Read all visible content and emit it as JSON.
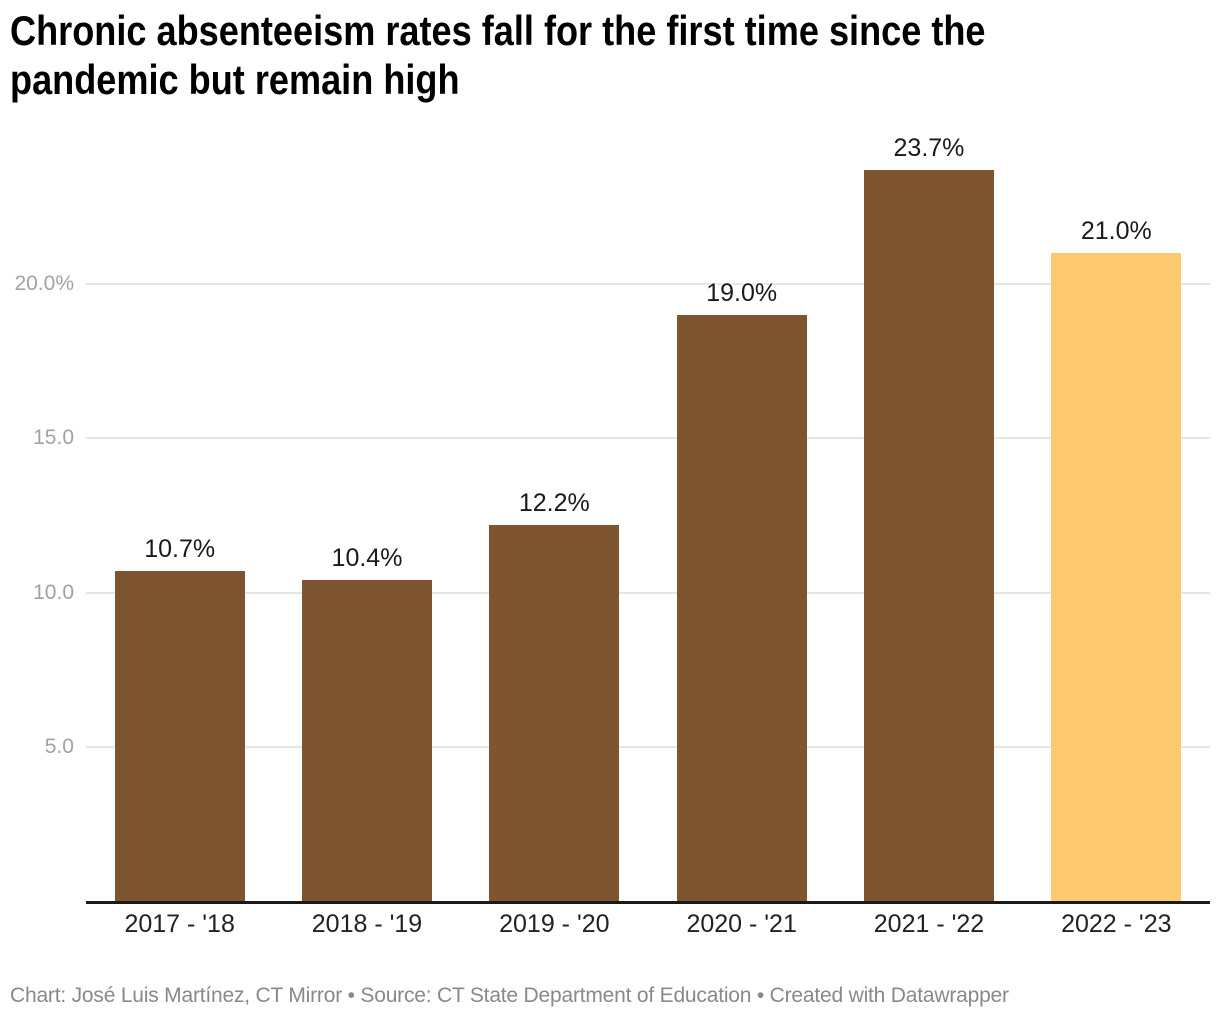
{
  "title": {
    "line1": "Chronic absenteeism rates fall for the first time since the",
    "line2": "pandemic but remain high"
  },
  "footer": {
    "text": "Chart: José Luis Martínez, CT Mirror • Source: CT State Department of Education • Created with Datawrapper"
  },
  "colors": {
    "bar_default": "#7D5531",
    "bar_highlight": "#FCC96F",
    "gridline": "#E6E6E6",
    "axis_line": "#1A1A1A",
    "ytick_text": "#A2A2A2",
    "xtick_text": "#222222",
    "value_label_text": "#1A1A1A",
    "title_text": "#000000",
    "footer_text": "#898989",
    "background": "#FFFFFF"
  },
  "chart_data": {
    "type": "bar",
    "title": "Chronic absenteeism rates fall for the first time since the pandemic but remain high",
    "xlabel": "",
    "ylabel": "",
    "unit": "%",
    "categories": [
      "2017 - '18",
      "2018 - '19",
      "2019 - '20",
      "2020 - '21",
      "2021 - '22",
      "2022 - '23"
    ],
    "values": [
      10.7,
      10.4,
      12.2,
      19.0,
      23.7,
      21.0
    ],
    "value_labels": [
      "10.7%",
      "10.4%",
      "12.2%",
      "19.0%",
      "23.7%",
      "21.0%"
    ],
    "highlight_index": 5,
    "highlight_category": "2022 - '23",
    "ylim": [
      0,
      25
    ],
    "yticks": [
      {
        "value": 20,
        "label": "20.0%"
      },
      {
        "value": 15,
        "label": "15.0"
      },
      {
        "value": 10,
        "label": "10.0"
      },
      {
        "value": 5,
        "label": "5.0"
      }
    ],
    "grid": true,
    "legend_position": "none"
  }
}
